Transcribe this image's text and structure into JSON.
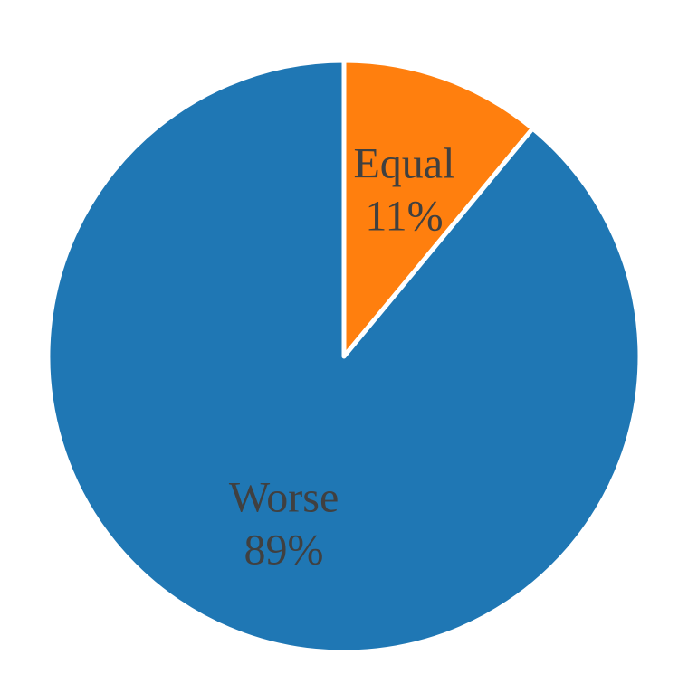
{
  "chart_data": {
    "type": "pie",
    "start_angle_deg": 0,
    "direction": "clockwise",
    "slices": [
      {
        "label": "Equal",
        "percent_label": "11%",
        "value": 11,
        "color": "#ff7f0e"
      },
      {
        "label": "Worse",
        "percent_label": "89%",
        "value": 89,
        "color": "#1f77b4"
      }
    ],
    "label_color": "#404040"
  }
}
